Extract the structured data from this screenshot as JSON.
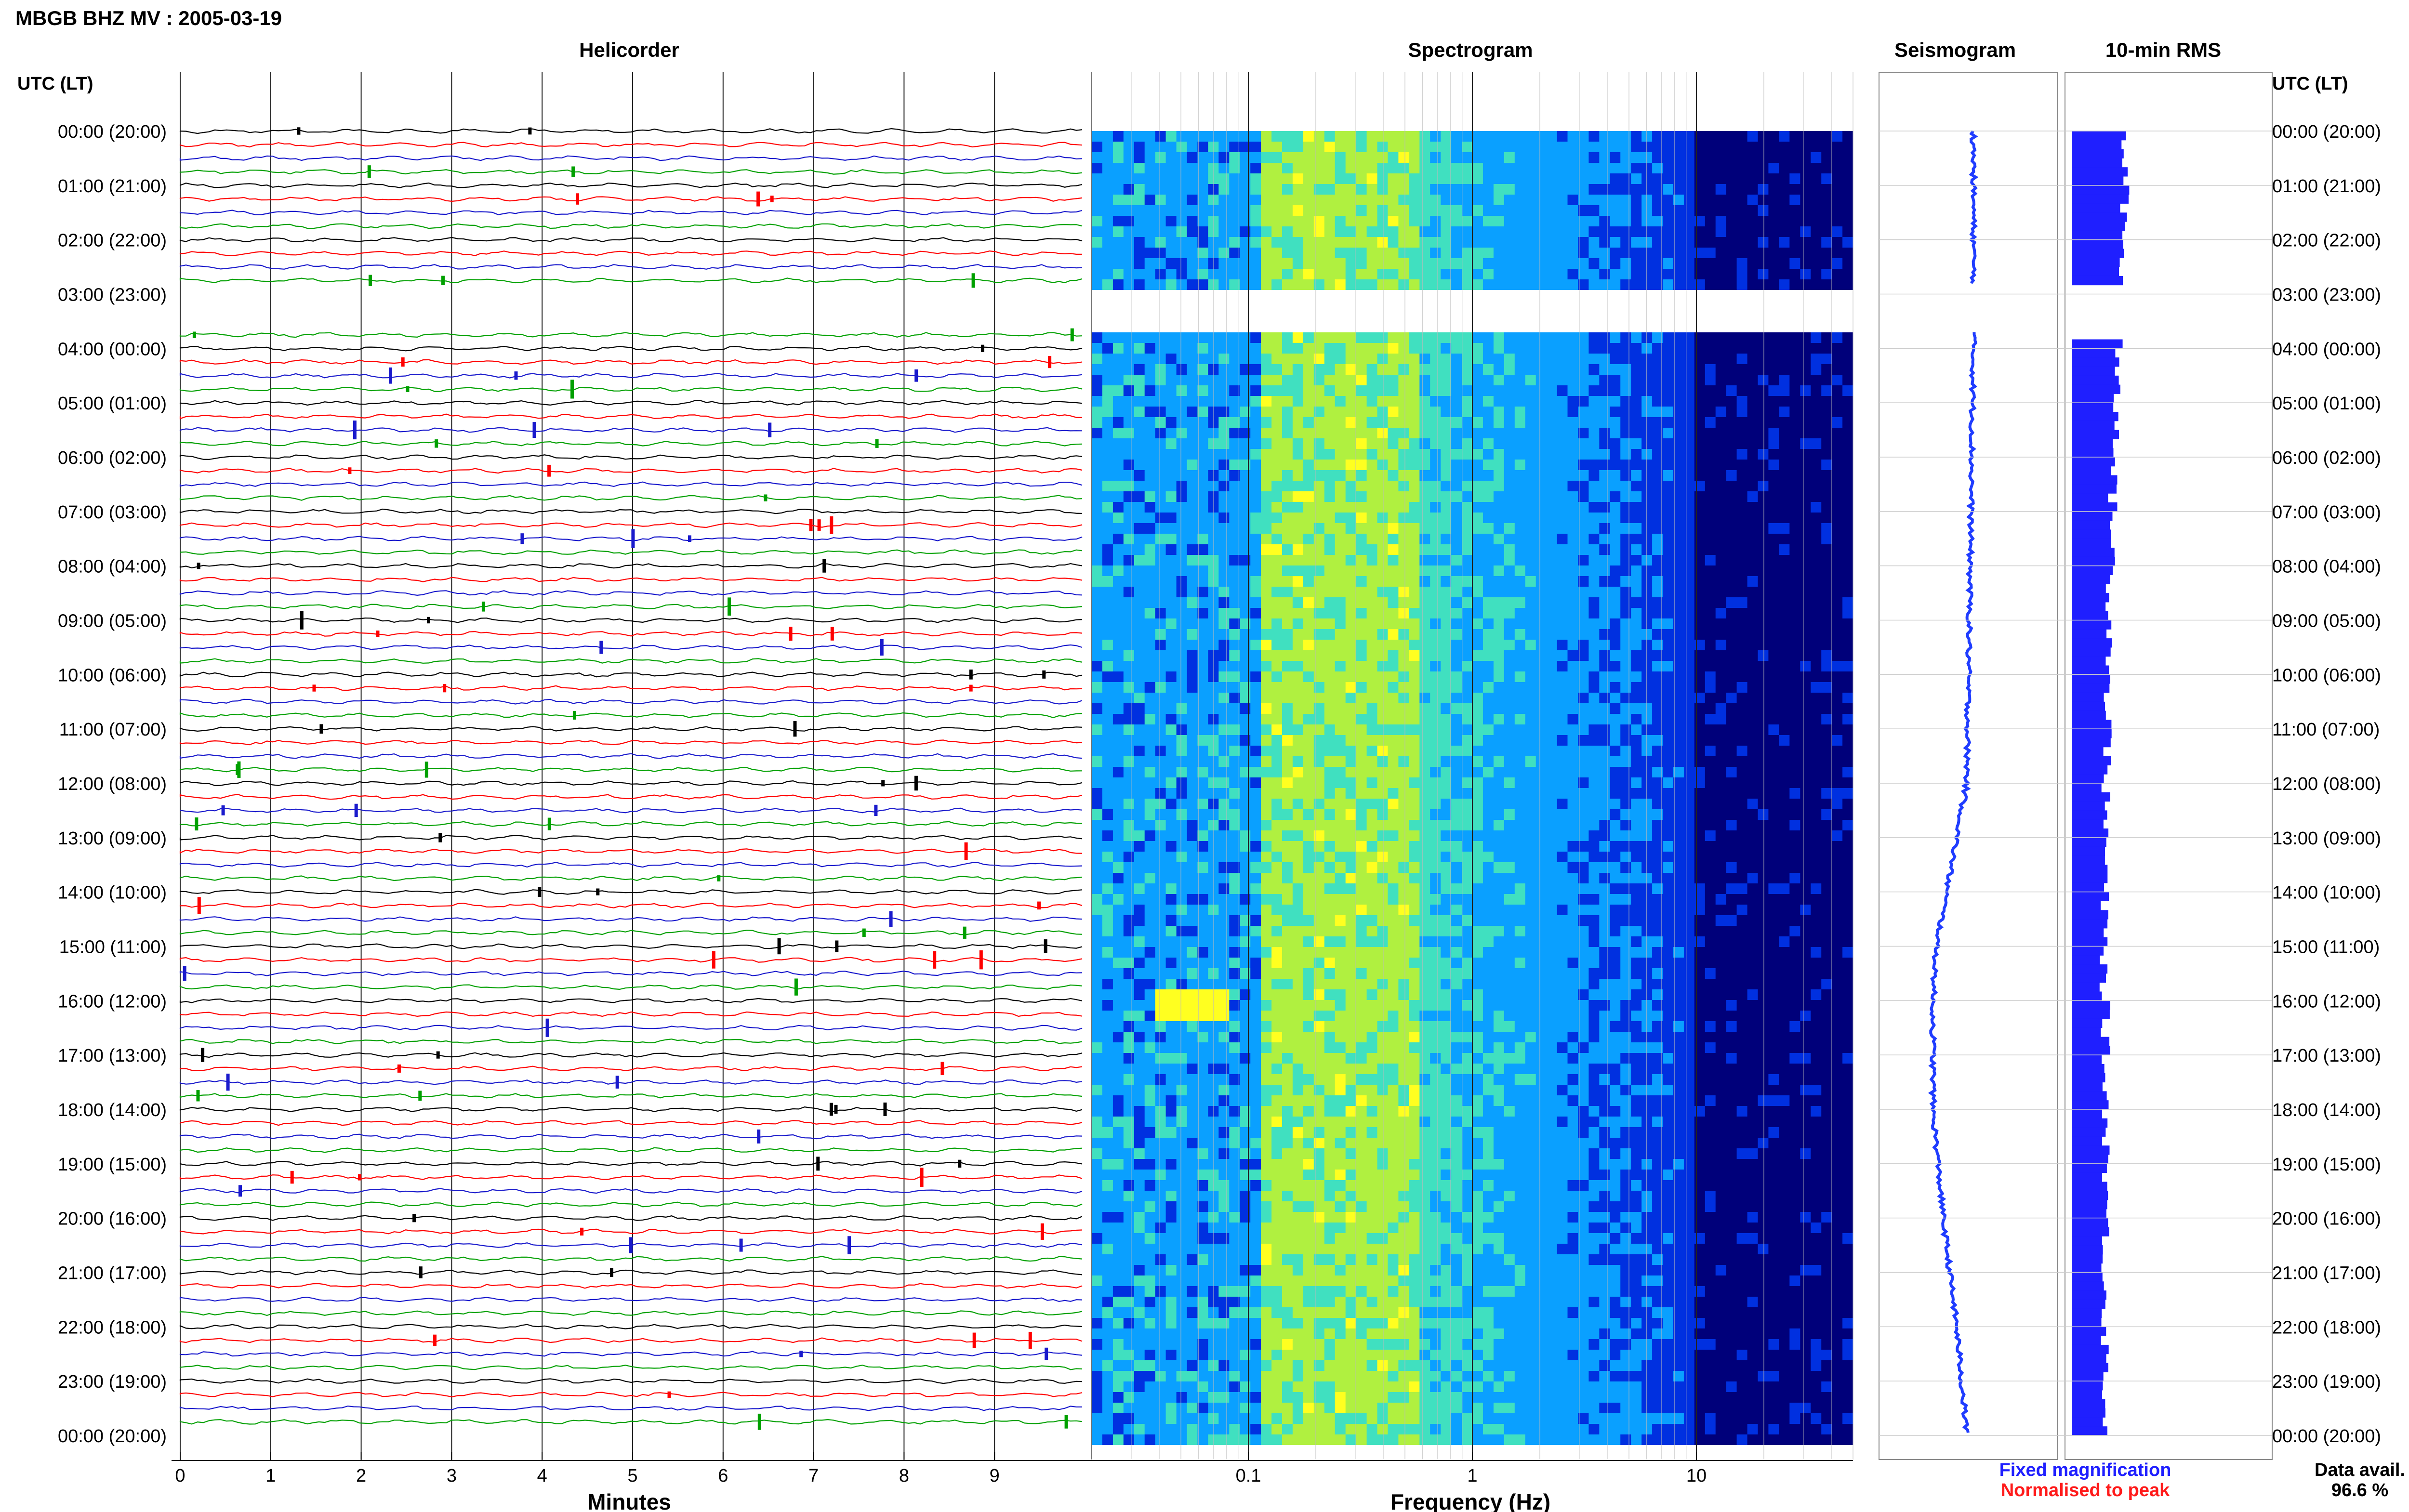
{
  "header": {
    "title": "MBGB BHZ MV : 2005-03-19"
  },
  "panels": {
    "helicorder": "Helicorder",
    "spectrogram": "Spectrogram",
    "seismogram": "Seismogram",
    "rms": "10-min RMS"
  },
  "time_axis_label": "UTC (LT)",
  "time_labels": [
    "00:00 (20:00)",
    "01:00 (21:00)",
    "02:00 (22:00)",
    "03:00 (23:00)",
    "04:00 (00:00)",
    "05:00 (01:00)",
    "06:00 (02:00)",
    "07:00 (03:00)",
    "08:00 (04:00)",
    "09:00 (05:00)",
    "10:00 (06:00)",
    "11:00 (07:00)",
    "12:00 (08:00)",
    "13:00 (09:00)",
    "14:00 (10:00)",
    "15:00 (11:00)",
    "16:00 (12:00)",
    "17:00 (13:00)",
    "18:00 (14:00)",
    "19:00 (15:00)",
    "20:00 (16:00)",
    "21:00 (17:00)",
    "22:00 (18:00)",
    "23:00 (19:00)",
    "00:00 (20:00)"
  ],
  "x_axes": {
    "minutes": {
      "label": "Minutes",
      "ticks": [
        "0",
        "1",
        "2",
        "3",
        "4",
        "5",
        "6",
        "7",
        "8",
        "9"
      ]
    },
    "frequency": {
      "label": "Frequency (Hz)",
      "ticks": [
        "0.1",
        "1",
        "10"
      ],
      "scale": "log"
    }
  },
  "legend": {
    "fixed": "Fixed magnification",
    "normalised": "Normalised to peak",
    "colors": {
      "fixed": "#1f1fff",
      "normalised": "#ff1a1a"
    }
  },
  "data_avail": {
    "label": "Data avail.",
    "value": "96.6 %"
  },
  "colors": {
    "trace_cycle": [
      "#000000",
      "#ff0000",
      "#1a1acc",
      "#00a000"
    ],
    "seismogram": "#1f3cff",
    "rms_bar": "#1f1fff",
    "spectrogram_colormap": [
      "#00007a",
      "#0030e0",
      "#0aa0ff",
      "#40e0c0",
      "#b0f040",
      "#ffff20"
    ]
  },
  "chart_data": {
    "type": "heatmap",
    "station": "MBGB BHZ MV",
    "date": "2005-03-19",
    "time_hours": [
      0,
      24
    ],
    "data_gap_hours": [
      2.8,
      3.7
    ],
    "rms_ticks": "none",
    "spectrogram": {
      "freq_range_hz": [
        0.02,
        50
      ],
      "peak_band_hz": [
        0.12,
        0.6
      ],
      "rolloff_hz": 10,
      "event_hour": 16,
      "event_freq_hz": [
        0.04,
        0.08
      ]
    },
    "seismogram_mean_offset": {
      "hours": [
        0,
        4,
        12,
        14,
        15,
        16,
        18,
        20,
        22,
        24
      ],
      "offset": [
        0.0,
        0.0,
        -0.1,
        -0.4,
        -0.55,
        -0.6,
        -0.6,
        -0.45,
        -0.25,
        -0.1
      ]
    },
    "rms_10min_relative": [
      1.0,
      0.9,
      0.7,
      0.5,
      0.4,
      0.3,
      0.2,
      0.15,
      0.2,
      0.25,
      0.2,
      0.2
    ]
  }
}
